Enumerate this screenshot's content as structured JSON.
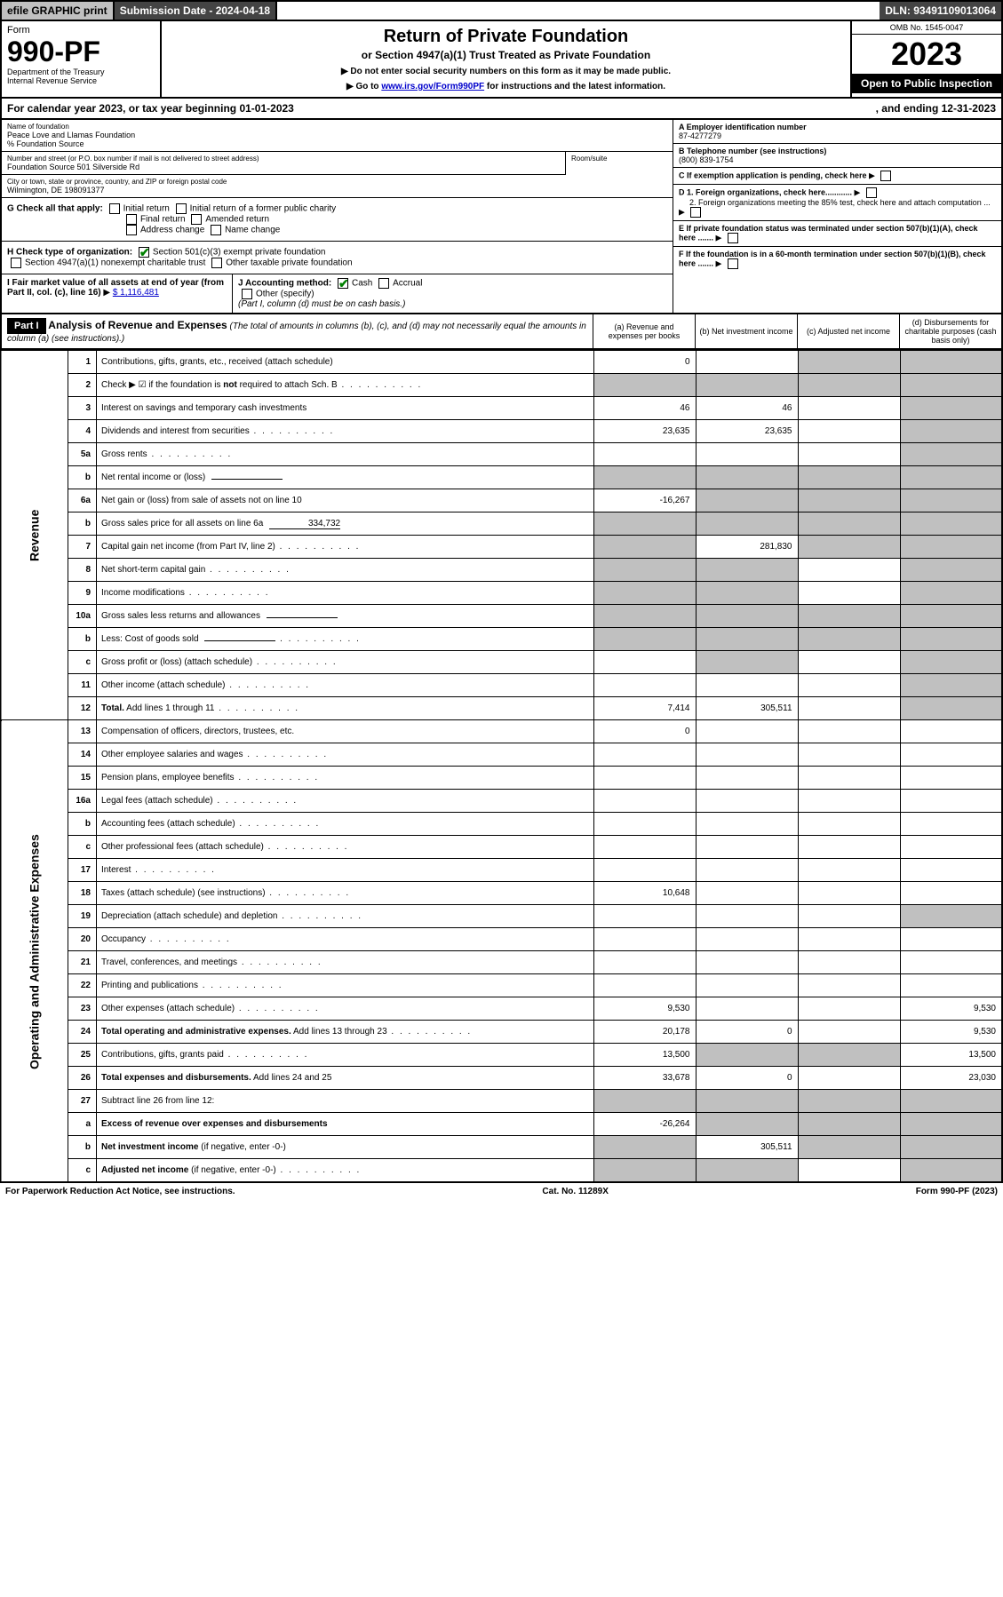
{
  "topbar": {
    "efile": "efile GRAPHIC print",
    "submission": "Submission Date - 2024-04-18",
    "dln": "DLN: 93491109013064"
  },
  "header": {
    "form": "Form",
    "formNo": "990-PF",
    "dept": "Department of the Treasury",
    "irs": "Internal Revenue Service",
    "title": "Return of Private Foundation",
    "subtitle": "or Section 4947(a)(1) Trust Treated as Private Foundation",
    "instr1": "▶ Do not enter social security numbers on this form as it may be made public.",
    "instr2a": "▶ Go to ",
    "instr2link": "www.irs.gov/Form990PF",
    "instr2b": " for instructions and the latest information.",
    "omb": "OMB No. 1545-0047",
    "year": "2023",
    "open": "Open to Public Inspection"
  },
  "calendar": {
    "prefix": "For calendar year 2023, or tax year beginning ",
    "begin": "01-01-2023",
    "mid": ", and ending ",
    "end": "12-31-2023"
  },
  "info": {
    "nameLbl": "Name of foundation",
    "name": "Peace Love and Llamas Foundation",
    "careOf": "% Foundation Source",
    "addrLbl": "Number and street (or P.O. box number if mail is not delivered to street address)",
    "addr": "Foundation Source 501 Silverside Rd",
    "roomLbl": "Room/suite",
    "room": "",
    "cityLbl": "City or town, state or province, country, and ZIP or foreign postal code",
    "city": "Wilmington, DE  198091377",
    "einLbl": "A Employer identification number",
    "ein": "87-4277279",
    "phoneLbl": "B Telephone number (see instructions)",
    "phone": "(800) 839-1754",
    "cLbl": "C If exemption application is pending, check here",
    "d1": "D 1. Foreign organizations, check here............",
    "d2": "2. Foreign organizations meeting the 85% test, check here and attach computation ...",
    "eLbl": "E  If private foundation status was terminated under section 507(b)(1)(A), check here .......",
    "fLbl": "F  If the foundation is in a 60-month termination under section 507(b)(1)(B), check here .......",
    "gLbl": "G Check all that apply:",
    "g1": "Initial return",
    "g2": "Initial return of a former public charity",
    "g3": "Final return",
    "g4": "Amended return",
    "g5": "Address change",
    "g6": "Name change",
    "hLbl": "H Check type of organization:",
    "h1": "Section 501(c)(3) exempt private foundation",
    "h2": "Section 4947(a)(1) nonexempt charitable trust",
    "h3": "Other taxable private foundation",
    "iLbl": "I Fair market value of all assets at end of year (from Part II, col. (c), line 16)",
    "iVal": "$  1,116,481",
    "jLbl": "J Accounting method:",
    "j1": "Cash",
    "j2": "Accrual",
    "j3": "Other (specify)",
    "jNote": "(Part I, column (d) must be on cash basis.)"
  },
  "part": {
    "label": "Part I",
    "title": "Analysis of Revenue and Expenses",
    "note": " (The total of amounts in columns (b), (c), and (d) may not necessarily equal the amounts in column (a) (see instructions).)",
    "colA": "(a)   Revenue and expenses per books",
    "colB": "(b)  Net investment income",
    "colC": "(c)  Adjusted net income",
    "colD": "(d)  Disbursements for charitable purposes (cash basis only)"
  },
  "sides": {
    "revenue": "Revenue",
    "expenses": "Operating and Administrative Expenses"
  },
  "rows": [
    {
      "n": "1",
      "d": "Contributions, gifts, grants, etc., received (attach schedule)",
      "a": "0",
      "b": "",
      "c": "g",
      "dd": "g"
    },
    {
      "n": "2",
      "d": "Check ▶ ☑ if the foundation is <b>not</b> required to attach Sch. B",
      "a": "g",
      "b": "g",
      "c": "g",
      "dd": "g",
      "dots": true
    },
    {
      "n": "3",
      "d": "Interest on savings and temporary cash investments",
      "a": "46",
      "b": "46",
      "c": "",
      "dd": "g"
    },
    {
      "n": "4",
      "d": "Dividends and interest from securities",
      "a": "23,635",
      "b": "23,635",
      "c": "",
      "dd": "g",
      "dots": true
    },
    {
      "n": "5a",
      "d": "Gross rents",
      "a": "",
      "b": "",
      "c": "",
      "dd": "g",
      "dots": true
    },
    {
      "n": "b",
      "d": "Net rental income or (loss)",
      "a": "g",
      "b": "g",
      "c": "g",
      "dd": "g",
      "sub": ""
    },
    {
      "n": "6a",
      "d": "Net gain or (loss) from sale of assets not on line 10",
      "a": "-16,267",
      "b": "g",
      "c": "g",
      "dd": "g"
    },
    {
      "n": "b",
      "d": "Gross sales price for all assets on line 6a",
      "a": "g",
      "b": "g",
      "c": "g",
      "dd": "g",
      "sub": "334,732"
    },
    {
      "n": "7",
      "d": "Capital gain net income (from Part IV, line 2)",
      "a": "g",
      "b": "281,830",
      "c": "g",
      "dd": "g",
      "dots": true
    },
    {
      "n": "8",
      "d": "Net short-term capital gain",
      "a": "g",
      "b": "g",
      "c": "",
      "dd": "g",
      "dots": true
    },
    {
      "n": "9",
      "d": "Income modifications",
      "a": "g",
      "b": "g",
      "c": "",
      "dd": "g",
      "dots": true
    },
    {
      "n": "10a",
      "d": "Gross sales less returns and allowances",
      "a": "g",
      "b": "g",
      "c": "g",
      "dd": "g",
      "sub": ""
    },
    {
      "n": "b",
      "d": "Less: Cost of goods sold",
      "a": "g",
      "b": "g",
      "c": "g",
      "dd": "g",
      "sub": "",
      "dots": true
    },
    {
      "n": "c",
      "d": "Gross profit or (loss) (attach schedule)",
      "a": "",
      "b": "g",
      "c": "",
      "dd": "g",
      "dots": true
    },
    {
      "n": "11",
      "d": "Other income (attach schedule)",
      "a": "",
      "b": "",
      "c": "",
      "dd": "g",
      "dots": true
    },
    {
      "n": "12",
      "d": "<b>Total.</b> Add lines 1 through 11",
      "a": "7,414",
      "b": "305,511",
      "c": "",
      "dd": "g",
      "dots": true
    },
    {
      "n": "13",
      "d": "Compensation of officers, directors, trustees, etc.",
      "a": "0",
      "b": "",
      "c": "",
      "dd": ""
    },
    {
      "n": "14",
      "d": "Other employee salaries and wages",
      "a": "",
      "b": "",
      "c": "",
      "dd": "",
      "dots": true
    },
    {
      "n": "15",
      "d": "Pension plans, employee benefits",
      "a": "",
      "b": "",
      "c": "",
      "dd": "",
      "dots": true
    },
    {
      "n": "16a",
      "d": "Legal fees (attach schedule)",
      "a": "",
      "b": "",
      "c": "",
      "dd": "",
      "dots": true
    },
    {
      "n": "b",
      "d": "Accounting fees (attach schedule)",
      "a": "",
      "b": "",
      "c": "",
      "dd": "",
      "dots": true
    },
    {
      "n": "c",
      "d": "Other professional fees (attach schedule)",
      "a": "",
      "b": "",
      "c": "",
      "dd": "",
      "dots": true
    },
    {
      "n": "17",
      "d": "Interest",
      "a": "",
      "b": "",
      "c": "",
      "dd": "",
      "dots": true
    },
    {
      "n": "18",
      "d": "Taxes (attach schedule) (see instructions)",
      "a": "10,648",
      "b": "",
      "c": "",
      "dd": "",
      "dots": true
    },
    {
      "n": "19",
      "d": "Depreciation (attach schedule) and depletion",
      "a": "",
      "b": "",
      "c": "",
      "dd": "g",
      "dots": true
    },
    {
      "n": "20",
      "d": "Occupancy",
      "a": "",
      "b": "",
      "c": "",
      "dd": "",
      "dots": true
    },
    {
      "n": "21",
      "d": "Travel, conferences, and meetings",
      "a": "",
      "b": "",
      "c": "",
      "dd": "",
      "dots": true
    },
    {
      "n": "22",
      "d": "Printing and publications",
      "a": "",
      "b": "",
      "c": "",
      "dd": "",
      "dots": true
    },
    {
      "n": "23",
      "d": "Other expenses (attach schedule)",
      "a": "9,530",
      "b": "",
      "c": "",
      "dd": "9,530",
      "dots": true
    },
    {
      "n": "24",
      "d": "<b>Total operating and administrative expenses.</b> Add lines 13 through 23",
      "a": "20,178",
      "b": "0",
      "c": "",
      "dd": "9,530",
      "dots": true
    },
    {
      "n": "25",
      "d": "Contributions, gifts, grants paid",
      "a": "13,500",
      "b": "g",
      "c": "g",
      "dd": "13,500",
      "dots": true
    },
    {
      "n": "26",
      "d": "<b>Total expenses and disbursements.</b> Add lines 24 and 25",
      "a": "33,678",
      "b": "0",
      "c": "",
      "dd": "23,030"
    },
    {
      "n": "27",
      "d": "Subtract line 26 from line 12:",
      "a": "g",
      "b": "g",
      "c": "g",
      "dd": "g"
    },
    {
      "n": "a",
      "d": "<b>Excess of revenue over expenses and disbursements</b>",
      "a": "-26,264",
      "b": "g",
      "c": "g",
      "dd": "g"
    },
    {
      "n": "b",
      "d": "<b>Net investment income</b> (if negative, enter -0-)",
      "a": "g",
      "b": "305,511",
      "c": "g",
      "dd": "g"
    },
    {
      "n": "c",
      "d": "<b>Adjusted net income</b> (if negative, enter -0-)",
      "a": "g",
      "b": "g",
      "c": "",
      "dd": "g",
      "dots": true
    }
  ],
  "footer": {
    "left": "For Paperwork Reduction Act Notice, see instructions.",
    "mid": "Cat. No. 11289X",
    "right": "Form 990-PF (2023)"
  }
}
